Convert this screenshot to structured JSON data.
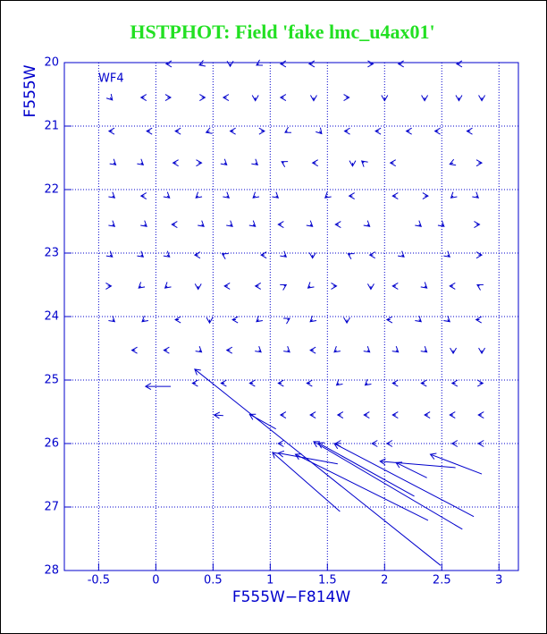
{
  "chart_data": {
    "type": "quiver",
    "title": "HSTPHOT: Field 'fake lmc_u4ax01'",
    "annotation": "WF4",
    "x_label": "F555W−F814W",
    "y_label": "F555W",
    "color": "#0000cc",
    "title_color": "#22e022",
    "grid": true,
    "xlim": [
      -0.8,
      3.17
    ],
    "ylim": [
      28,
      20
    ],
    "xticks": [
      -0.5,
      0,
      0.5,
      1,
      1.5,
      2,
      2.5,
      3
    ],
    "yticks": [
      20,
      21,
      22,
      23,
      24,
      25,
      26,
      27,
      28
    ],
    "arrows": [
      [
        0.12,
        20.02,
        -0.03,
        0
      ],
      [
        0.41,
        20.02,
        -0.03,
        0.02
      ],
      [
        0.65,
        20.02,
        0,
        0.04
      ],
      [
        0.9,
        20.02,
        -0.02,
        0.02
      ],
      [
        1.12,
        20.02,
        -0.03,
        0
      ],
      [
        1.37,
        20.02,
        -0.03,
        0
      ],
      [
        1.87,
        20.02,
        0.03,
        0
      ],
      [
        2.15,
        20.02,
        -0.03,
        0
      ],
      [
        2.66,
        20.02,
        -0.03,
        0
      ],
      [
        -0.4,
        20.55,
        0.02,
        0.04
      ],
      [
        -0.1,
        20.55,
        -0.03,
        0
      ],
      [
        0.1,
        20.55,
        0.03,
        0
      ],
      [
        0.4,
        20.55,
        0.03,
        0
      ],
      [
        0.62,
        20.55,
        -0.03,
        0
      ],
      [
        0.87,
        20.55,
        0,
        0.05
      ],
      [
        1.12,
        20.55,
        -0.03,
        0
      ],
      [
        1.38,
        20.55,
        0,
        0.05
      ],
      [
        1.66,
        20.55,
        0.03,
        0
      ],
      [
        2.0,
        20.55,
        0,
        0.05
      ],
      [
        2.35,
        20.55,
        0,
        0.05
      ],
      [
        2.65,
        20.55,
        0,
        0.05
      ],
      [
        2.85,
        20.55,
        0,
        0.05
      ],
      [
        -0.38,
        21.08,
        -0.03,
        0
      ],
      [
        -0.05,
        21.08,
        -0.03,
        0
      ],
      [
        0.2,
        21.08,
        -0.03,
        0
      ],
      [
        0.47,
        21.08,
        -0.03,
        0.02
      ],
      [
        0.68,
        21.08,
        -0.03,
        0
      ],
      [
        0.92,
        21.08,
        0.03,
        0
      ],
      [
        1.15,
        21.08,
        -0.02,
        0.02
      ],
      [
        1.43,
        21.08,
        0.02,
        0.04
      ],
      [
        1.68,
        21.08,
        -0.03,
        0
      ],
      [
        1.95,
        21.08,
        -0.03,
        0
      ],
      [
        2.22,
        21.08,
        -0.03,
        0
      ],
      [
        2.47,
        21.08,
        -0.03,
        0
      ],
      [
        2.75,
        21.08,
        -0.03,
        0
      ],
      [
        -0.37,
        21.58,
        0.02,
        0.03
      ],
      [
        -0.13,
        21.58,
        0.02,
        0.03
      ],
      [
        0.18,
        21.58,
        -0.03,
        0
      ],
      [
        0.37,
        21.58,
        0.03,
        0
      ],
      [
        0.6,
        21.58,
        0.02,
        0.03
      ],
      [
        0.87,
        21.58,
        0.02,
        0.03
      ],
      [
        1.12,
        21.58,
        -0.02,
        -0.02
      ],
      [
        1.4,
        21.58,
        -0.03,
        0
      ],
      [
        1.72,
        21.58,
        0,
        0.05
      ],
      [
        1.82,
        21.58,
        -0.02,
        -0.03
      ],
      [
        2.08,
        21.58,
        -0.03,
        0
      ],
      [
        2.6,
        21.58,
        -0.03,
        0.02
      ],
      [
        2.82,
        21.58,
        0.03,
        0
      ],
      [
        -0.38,
        22.1,
        0.02,
        0.03
      ],
      [
        -0.1,
        22.1,
        -0.03,
        0
      ],
      [
        0.1,
        22.1,
        0.02,
        0.03
      ],
      [
        0.37,
        22.1,
        -0.02,
        0.03
      ],
      [
        0.62,
        22.1,
        0.02,
        0.03
      ],
      [
        0.87,
        22.1,
        -0.02,
        0.03
      ],
      [
        1.05,
        22.1,
        0.02,
        0.03
      ],
      [
        1.5,
        22.1,
        -0.02,
        0.03
      ],
      [
        1.72,
        22.1,
        -0.03,
        0
      ],
      [
        2.1,
        22.1,
        -0.03,
        0
      ],
      [
        2.35,
        22.1,
        0.03,
        0
      ],
      [
        2.6,
        22.1,
        -0.02,
        0.03
      ],
      [
        2.8,
        22.1,
        0.02,
        0.03
      ],
      [
        -0.38,
        22.55,
        0.02,
        0.03
      ],
      [
        -0.1,
        22.55,
        0.02,
        0.03
      ],
      [
        0.17,
        22.55,
        -0.03,
        0
      ],
      [
        0.4,
        22.55,
        0.02,
        0.03
      ],
      [
        0.65,
        22.55,
        0.02,
        0.03
      ],
      [
        0.85,
        22.55,
        0.02,
        0.03
      ],
      [
        1.1,
        22.55,
        -0.03,
        0
      ],
      [
        1.35,
        22.55,
        0.02,
        0.03
      ],
      [
        1.6,
        22.55,
        -0.03,
        0
      ],
      [
        1.85,
        22.55,
        0.02,
        0.03
      ],
      [
        2.3,
        22.55,
        0.02,
        0.03
      ],
      [
        2.5,
        22.55,
        0.02,
        0.03
      ],
      [
        2.8,
        22.55,
        0.03,
        0
      ],
      [
        -0.4,
        23.03,
        0.02,
        0.03
      ],
      [
        -0.13,
        23.03,
        0.02,
        0.03
      ],
      [
        0.1,
        23.03,
        0.02,
        0.03
      ],
      [
        0.37,
        23.03,
        -0.03,
        0
      ],
      [
        0.6,
        23.03,
        -0.02,
        -0.02
      ],
      [
        0.95,
        23.03,
        -0.03,
        0
      ],
      [
        1.12,
        23.03,
        0.02,
        0.03
      ],
      [
        1.37,
        23.03,
        0,
        0.05
      ],
      [
        1.7,
        23.03,
        -0.02,
        -0.02
      ],
      [
        1.9,
        23.03,
        -0.03,
        0
      ],
      [
        2.15,
        23.03,
        0.02,
        0.03
      ],
      [
        2.55,
        23.03,
        0.02,
        0.03
      ],
      [
        2.82,
        23.03,
        0.03,
        0
      ],
      [
        -0.42,
        23.52,
        0.03,
        0
      ],
      [
        -0.13,
        23.52,
        -0.02,
        0.03
      ],
      [
        0.1,
        23.52,
        -0.02,
        0.03
      ],
      [
        0.37,
        23.52,
        0,
        0.05
      ],
      [
        0.63,
        23.52,
        -0.03,
        0
      ],
      [
        0.9,
        23.52,
        -0.03,
        0
      ],
      [
        1.12,
        23.52,
        0.02,
        -0.02
      ],
      [
        1.35,
        23.52,
        -0.02,
        0.03
      ],
      [
        1.55,
        23.52,
        0.03,
        0
      ],
      [
        1.88,
        23.52,
        0,
        0.05
      ],
      [
        2.1,
        23.52,
        -0.03,
        0
      ],
      [
        2.35,
        23.52,
        0.02,
        0.03
      ],
      [
        2.6,
        23.52,
        -0.03,
        0
      ],
      [
        2.83,
        23.52,
        -0.02,
        -0.02
      ],
      [
        -0.38,
        24.05,
        0.02,
        0.03
      ],
      [
        -0.1,
        24.05,
        -0.02,
        0.03
      ],
      [
        0.2,
        24.05,
        -0.03,
        0
      ],
      [
        0.47,
        24.05,
        0,
        0.05
      ],
      [
        0.7,
        24.05,
        -0.03,
        0
      ],
      [
        0.9,
        24.05,
        -0.02,
        0.03
      ],
      [
        1.15,
        24.05,
        0.02,
        -0.02
      ],
      [
        1.37,
        24.05,
        -0.02,
        0.03
      ],
      [
        1.67,
        24.05,
        0,
        0.05
      ],
      [
        2.05,
        24.05,
        -0.03,
        0
      ],
      [
        2.3,
        24.05,
        0.02,
        0.03
      ],
      [
        2.55,
        24.05,
        0.02,
        0.03
      ],
      [
        2.83,
        24.05,
        -0.03,
        0
      ],
      [
        -0.18,
        24.53,
        -0.03,
        0
      ],
      [
        0.1,
        24.53,
        -0.03,
        0
      ],
      [
        0.38,
        24.53,
        0.02,
        0.03
      ],
      [
        0.65,
        24.53,
        -0.03,
        0
      ],
      [
        0.9,
        24.53,
        0.02,
        0.03
      ],
      [
        1.15,
        24.53,
        0.02,
        0.03
      ],
      [
        1.38,
        24.53,
        -0.03,
        0
      ],
      [
        1.58,
        24.53,
        -0.02,
        0.03
      ],
      [
        1.85,
        24.53,
        0.02,
        0.03
      ],
      [
        2.1,
        24.53,
        0.02,
        0.03
      ],
      [
        2.35,
        24.53,
        0.02,
        0.03
      ],
      [
        2.6,
        24.53,
        0,
        0.05
      ],
      [
        2.85,
        24.53,
        0,
        0.05
      ],
      [
        0.35,
        25.05,
        -0.03,
        0
      ],
      [
        0.6,
        25.05,
        -0.03,
        0
      ],
      [
        0.85,
        25.05,
        -0.03,
        0
      ],
      [
        1.1,
        25.05,
        -0.03,
        0
      ],
      [
        1.35,
        25.05,
        -0.03,
        0
      ],
      [
        1.6,
        25.05,
        -0.02,
        0.03
      ],
      [
        1.85,
        25.05,
        -0.02,
        0.03
      ],
      [
        2.1,
        25.05,
        -0.03,
        0
      ],
      [
        2.35,
        25.05,
        -0.03,
        0
      ],
      [
        2.62,
        25.05,
        -0.03,
        0
      ],
      [
        2.83,
        25.05,
        0.03,
        0
      ],
      [
        1.12,
        25.55,
        -0.03,
        0
      ],
      [
        1.38,
        25.55,
        -0.03,
        0
      ],
      [
        1.62,
        25.55,
        -0.03,
        0
      ],
      [
        1.85,
        25.55,
        -0.03,
        0
      ],
      [
        2.1,
        25.55,
        -0.03,
        0
      ],
      [
        2.38,
        25.55,
        -0.03,
        0
      ],
      [
        2.6,
        25.55,
        -0.03,
        0
      ],
      [
        2.85,
        25.55,
        -0.03,
        0
      ],
      [
        1.1,
        26.0,
        -0.03,
        0
      ],
      [
        1.6,
        26.0,
        -0.03,
        0
      ],
      [
        1.92,
        26.0,
        -0.03,
        0
      ],
      [
        2.05,
        26.0,
        -0.03,
        0
      ],
      [
        2.62,
        26.0,
        -0.03,
        0
      ],
      [
        2.85,
        26.0,
        -0.03,
        0
      ],
      [
        1.61,
        27.07,
        -0.59,
        -0.93
      ],
      [
        2.49,
        27.92,
        -2.15,
        -3.09
      ],
      [
        2.38,
        27.21,
        -1.16,
        -1.04
      ],
      [
        2.68,
        27.35,
        -1.3,
        -1.38
      ],
      [
        2.78,
        27.15,
        -1.22,
        -1.15
      ],
      [
        2.26,
        26.83,
        -0.84,
        -0.84
      ],
      [
        2.85,
        26.48,
        -0.45,
        -0.31
      ],
      [
        2.37,
        26.54,
        -0.27,
        -0.24
      ],
      [
        2.62,
        26.38,
        -0.66,
        -0.1
      ],
      [
        1.59,
        26.32,
        -0.52,
        -0.17
      ],
      [
        0.13,
        25.1,
        -0.22,
        0
      ],
      [
        1.05,
        25.77,
        -0.23,
        -0.23
      ],
      [
        0.59,
        25.56,
        -0.08,
        -0.01
      ]
    ]
  }
}
